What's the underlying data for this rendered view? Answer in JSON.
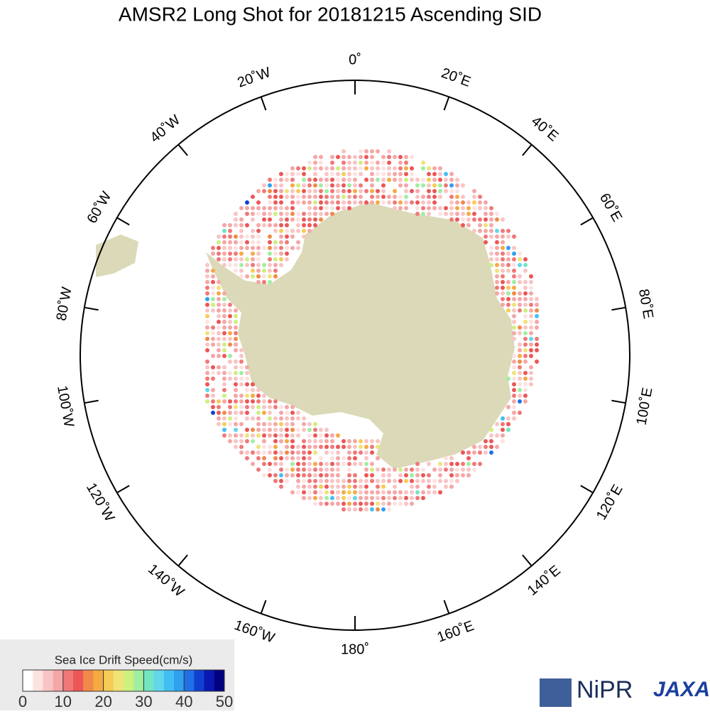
{
  "map": {
    "title": "AMSR2 Long Shot for 20181215 Ascending SID",
    "longitude_labels": [
      "0˚",
      "20˚E",
      "40˚E",
      "60˚E",
      "80˚E",
      "100˚E",
      "120˚E",
      "140˚E",
      "160˚E",
      "180˚",
      "160˚W",
      "140˚W",
      "120˚W",
      "100˚W",
      "80˚W",
      "60˚W",
      "40˚W",
      "20˚W"
    ],
    "colorbar": {
      "title": "Sea Ice Drift Speed(cm/s)",
      "range": [
        0,
        50
      ],
      "ticks": [
        0,
        10,
        20,
        30,
        40,
        50
      ],
      "colors": [
        "#ffffff",
        "#fde2e2",
        "#f9c4c4",
        "#f5a6a6",
        "#f07878",
        "#ec5656",
        "#f08a48",
        "#f5aa44",
        "#f5cc55",
        "#eee477",
        "#cdf07f",
        "#a0eea2",
        "#72e6c2",
        "#62d6ea",
        "#42bff2",
        "#30a0f0",
        "#2070e6",
        "#1040d0",
        "#0818b0",
        "#000080"
      ]
    },
    "logos": [
      "NiPR",
      "JAXA"
    ]
  }
}
